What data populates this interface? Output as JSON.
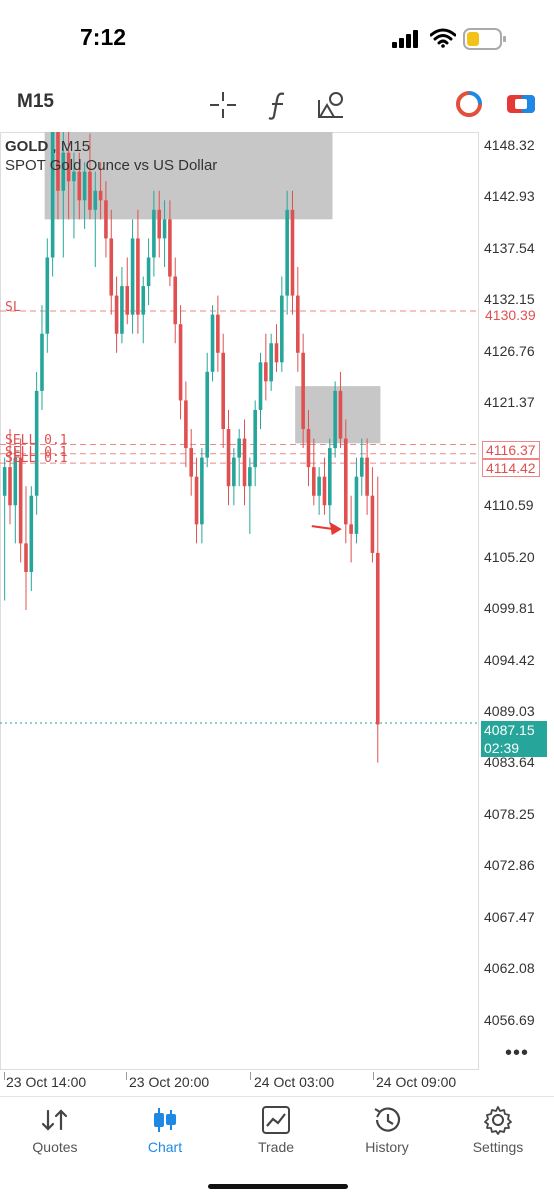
{
  "status_bar": {
    "time": "7:12"
  },
  "toolbar": {
    "timeframe": "M15"
  },
  "chart": {
    "symbol": "GOLD",
    "timeframe": "M15",
    "description": "SPOT Gold Ounce vs US Dollar",
    "price_axis": [
      "4148.32",
      "4142.93",
      "4137.54",
      "4132.15",
      "4126.76",
      "4121.37",
      "4110.59",
      "4105.20",
      "4099.81",
      "4094.42",
      "4089.03",
      "4083.64",
      "4078.25",
      "4072.86",
      "4067.47",
      "4062.08",
      "4056.69"
    ],
    "time_axis": [
      "23 Oct 14:00",
      "23 Oct 20:00",
      "24 Oct 03:00",
      "24 Oct 09:00"
    ],
    "current_price": "4087.15",
    "countdown": "02:39",
    "lines": [
      {
        "label": "SL",
        "price": "4130.39",
        "color": "#e05050"
      },
      {
        "label": "SELL 0.1",
        "price": "4116.37",
        "color": "#e05050"
      },
      {
        "label": "SELL 0.1",
        "price": "4114.42",
        "color": "#e05050"
      },
      {
        "label": "SELL 0.1",
        "price": "",
        "color": "#e05050"
      }
    ],
    "colors": {
      "bull": "#26a69a",
      "bear": "#e05050",
      "zone": "#c4c4c4",
      "current": "#26a69a"
    }
  },
  "chart_data": {
    "type": "candlestick",
    "title": "GOLD, M15",
    "subtitle": "SPOT Gold Ounce vs US Dollar",
    "ylim": [
      4053,
      4152
    ],
    "candles": [
      {
        "o": 4111,
        "h": 4115,
        "l": 4100,
        "c": 4114
      },
      {
        "o": 4114,
        "h": 4118,
        "l": 4108,
        "c": 4110
      },
      {
        "o": 4110,
        "h": 4116,
        "l": 4106,
        "c": 4115
      },
      {
        "o": 4115,
        "h": 4117,
        "l": 4104,
        "c": 4106
      },
      {
        "o": 4106,
        "h": 4112,
        "l": 4099,
        "c": 4103
      },
      {
        "o": 4103,
        "h": 4112,
        "l": 4101,
        "c": 4111
      },
      {
        "o": 4111,
        "h": 4124,
        "l": 4109,
        "c": 4122
      },
      {
        "o": 4122,
        "h": 4131,
        "l": 4120,
        "c": 4128
      },
      {
        "o": 4128,
        "h": 4138,
        "l": 4126,
        "c": 4136
      },
      {
        "o": 4136,
        "h": 4152,
        "l": 4134,
        "c": 4150
      },
      {
        "o": 4150,
        "h": 4152,
        "l": 4140,
        "c": 4143
      },
      {
        "o": 4143,
        "h": 4152,
        "l": 4136,
        "c": 4147
      },
      {
        "o": 4147,
        "h": 4152,
        "l": 4140,
        "c": 4144
      },
      {
        "o": 4144,
        "h": 4147,
        "l": 4138,
        "c": 4145
      },
      {
        "o": 4145,
        "h": 4147,
        "l": 4140,
        "c": 4142
      },
      {
        "o": 4142,
        "h": 4146,
        "l": 4139,
        "c": 4145
      },
      {
        "o": 4145,
        "h": 4149,
        "l": 4140,
        "c": 4141
      },
      {
        "o": 4141,
        "h": 4145,
        "l": 4135,
        "c": 4143
      },
      {
        "o": 4143,
        "h": 4146,
        "l": 4140,
        "c": 4142
      },
      {
        "o": 4142,
        "h": 4144,
        "l": 4136,
        "c": 4138
      },
      {
        "o": 4138,
        "h": 4141,
        "l": 4130,
        "c": 4132
      },
      {
        "o": 4132,
        "h": 4134,
        "l": 4126,
        "c": 4128
      },
      {
        "o": 4128,
        "h": 4135,
        "l": 4127,
        "c": 4133
      },
      {
        "o": 4133,
        "h": 4136,
        "l": 4129,
        "c": 4130
      },
      {
        "o": 4130,
        "h": 4140,
        "l": 4128,
        "c": 4138
      },
      {
        "o": 4138,
        "h": 4141,
        "l": 4128,
        "c": 4130
      },
      {
        "o": 4130,
        "h": 4134,
        "l": 4127,
        "c": 4133
      },
      {
        "o": 4133,
        "h": 4138,
        "l": 4131,
        "c": 4136
      },
      {
        "o": 4136,
        "h": 4143,
        "l": 4134,
        "c": 4141
      },
      {
        "o": 4141,
        "h": 4143,
        "l": 4136,
        "c": 4138
      },
      {
        "o": 4138,
        "h": 4142,
        "l": 4135,
        "c": 4140
      },
      {
        "o": 4140,
        "h": 4142,
        "l": 4133,
        "c": 4134
      },
      {
        "o": 4134,
        "h": 4136,
        "l": 4127,
        "c": 4129
      },
      {
        "o": 4129,
        "h": 4131,
        "l": 4119,
        "c": 4121
      },
      {
        "o": 4121,
        "h": 4123,
        "l": 4114,
        "c": 4116
      },
      {
        "o": 4116,
        "h": 4118,
        "l": 4111,
        "c": 4113
      },
      {
        "o": 4113,
        "h": 4115,
        "l": 4106,
        "c": 4108
      },
      {
        "o": 4108,
        "h": 4116,
        "l": 4106,
        "c": 4115
      },
      {
        "o": 4115,
        "h": 4126,
        "l": 4114,
        "c": 4124
      },
      {
        "o": 4124,
        "h": 4131,
        "l": 4123,
        "c": 4130
      },
      {
        "o": 4130,
        "h": 4132,
        "l": 4124,
        "c": 4126
      },
      {
        "o": 4126,
        "h": 4128,
        "l": 4116,
        "c": 4118
      },
      {
        "o": 4118,
        "h": 4120,
        "l": 4110,
        "c": 4112
      },
      {
        "o": 4112,
        "h": 4116,
        "l": 4110,
        "c": 4115
      },
      {
        "o": 4115,
        "h": 4118,
        "l": 4112,
        "c": 4117
      },
      {
        "o": 4117,
        "h": 4119,
        "l": 4110,
        "c": 4112
      },
      {
        "o": 4112,
        "h": 4115,
        "l": 4107,
        "c": 4114
      },
      {
        "o": 4114,
        "h": 4121,
        "l": 4112,
        "c": 4120
      },
      {
        "o": 4120,
        "h": 4126,
        "l": 4118,
        "c": 4125
      },
      {
        "o": 4125,
        "h": 4128,
        "l": 4121,
        "c": 4123
      },
      {
        "o": 4123,
        "h": 4128,
        "l": 4122,
        "c": 4127
      },
      {
        "o": 4127,
        "h": 4129,
        "l": 4124,
        "c": 4125
      },
      {
        "o": 4125,
        "h": 4134,
        "l": 4124,
        "c": 4132
      },
      {
        "o": 4132,
        "h": 4143,
        "l": 4130,
        "c": 4141
      },
      {
        "o": 4141,
        "h": 4143,
        "l": 4130,
        "c": 4132
      },
      {
        "o": 4132,
        "h": 4135,
        "l": 4124,
        "c": 4126
      },
      {
        "o": 4126,
        "h": 4128,
        "l": 4116,
        "c": 4118
      },
      {
        "o": 4118,
        "h": 4120,
        "l": 4112,
        "c": 4114
      },
      {
        "o": 4114,
        "h": 4117,
        "l": 4110,
        "c": 4111
      },
      {
        "o": 4111,
        "h": 4114,
        "l": 4109,
        "c": 4113
      },
      {
        "o": 4113,
        "h": 4115,
        "l": 4109,
        "c": 4110
      },
      {
        "o": 4110,
        "h": 4117,
        "l": 4108,
        "c": 4116
      },
      {
        "o": 4116,
        "h": 4123,
        "l": 4115,
        "c": 4122
      },
      {
        "o": 4122,
        "h": 4124,
        "l": 4116,
        "c": 4117
      },
      {
        "o": 4117,
        "h": 4119,
        "l": 4106,
        "c": 4108
      },
      {
        "o": 4108,
        "h": 4111,
        "l": 4104,
        "c": 4107
      },
      {
        "o": 4107,
        "h": 4115,
        "l": 4106,
        "c": 4113
      },
      {
        "o": 4113,
        "h": 4117,
        "l": 4111,
        "c": 4115
      },
      {
        "o": 4115,
        "h": 4117,
        "l": 4109,
        "c": 4111
      },
      {
        "o": 4111,
        "h": 4114,
        "l": 4104,
        "c": 4105
      },
      {
        "o": 4105,
        "h": 4113,
        "l": 4083,
        "c": 4087
      }
    ],
    "zones": [
      {
        "from_candle": 8,
        "to_candle": 61,
        "price_top": 4152,
        "price_bottom": 4140
      },
      {
        "from_candle": 55,
        "to_candle": 70,
        "price_top": 4122.5,
        "price_bottom": 4116.5
      }
    ],
    "hlines": [
      {
        "label": "SL",
        "price": 4130.39
      },
      {
        "label": "SELL 0.1",
        "price": 4116.37
      },
      {
        "label": "SELL 0.1",
        "price": 4114.42
      },
      {
        "label": "SELL 0.1",
        "price": 4115.4
      },
      {
        "label": "current",
        "price": 4087.15
      }
    ],
    "annotation": {
      "type": "arrow",
      "at_candle": 64,
      "price": 4107.5
    }
  },
  "tabs": [
    {
      "label": "Quotes",
      "icon": "quotes-icon",
      "active": false
    },
    {
      "label": "Chart",
      "icon": "chart-candles-icon",
      "active": true
    },
    {
      "label": "Trade",
      "icon": "trade-icon",
      "active": false
    },
    {
      "label": "History",
      "icon": "history-icon",
      "active": false
    },
    {
      "label": "Settings",
      "icon": "gear-icon",
      "active": false
    }
  ]
}
